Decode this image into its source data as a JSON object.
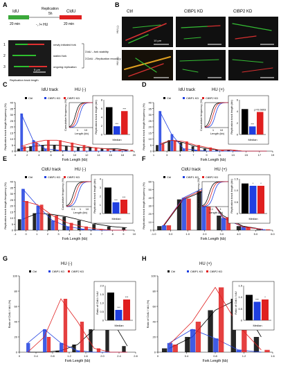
{
  "figure": {
    "panel_letters": [
      "A",
      "B",
      "C",
      "D",
      "E",
      "F",
      "G",
      "H"
    ],
    "schematic": {
      "idu_label": "IdU",
      "idu_time": "20 min",
      "replication_label": "Replication",
      "replication_time": "5h",
      "hu_label": "-, /+ HU",
      "cldu_label": "CldU",
      "cldu_time": "20 min",
      "fork_classes": [
        "newly initiated fork",
        "stalled fork",
        "ongoing replication"
      ],
      "fork_numbers": [
        "1",
        "2",
        "3"
      ],
      "sum_idu": "ΣIdU→fork stability",
      "sum_cldu": "ΣCldU→Replication recovery",
      "scale_bar": "5 μm",
      "track_caption": "Replication track length"
    },
    "micrographs": {
      "column_labels": [
        "Ctrl",
        "CtBP1 KD",
        "CtBP2 KD"
      ],
      "row_labels": [
        "HU (-)",
        "HU (+)"
      ],
      "scale_bar": "10 μm"
    }
  },
  "legend": {
    "ctrl": "Ctrl",
    "ctbp1": "CtBP1 KD",
    "ctbp2": "CtBP2 KD",
    "ctrl_color": "#000000",
    "ctbp1_color": "#1f3fe0",
    "ctbp2_color": "#e01f1f"
  },
  "chart_data": [
    {
      "panel": "C",
      "type": "bar",
      "title": "IdU track",
      "condition": "HU (-)",
      "xlabel": "Fork Length (kb)",
      "ylabel": "Replication track length frequency (%)",
      "ylim": [
        0,
        40
      ],
      "yticks": [
        "0",
        "5",
        "10",
        "15",
        "20",
        "25",
        "30",
        "35",
        "40"
      ],
      "xticks": [
        "0",
        "2",
        "4",
        "6",
        "8",
        "10",
        "12",
        "14",
        "16",
        "18",
        "20"
      ],
      "series": [
        {
          "name": "Ctrl",
          "values": [
            2,
            4,
            5,
            5,
            4,
            3,
            3,
            2,
            2,
            1
          ]
        },
        {
          "name": "CtBP1 KD",
          "values": [
            31,
            9,
            2,
            1,
            0,
            0,
            0,
            0,
            0,
            0
          ]
        },
        {
          "name": "CtBP2 KD",
          "values": [
            4,
            7,
            9,
            9,
            7,
            5,
            3,
            2,
            1,
            1
          ]
        }
      ],
      "inset_cdf": {
        "ylabel": "Cumulative frequency (%)",
        "xlabel": "Length (kb)",
        "xticks": [
          "1",
          "10"
        ]
      },
      "median": {
        "label": "Median",
        "ylabel": "Replication track length (kb)",
        "ylim": [
          0,
          8
        ],
        "yticks": [
          "0",
          "2",
          "4",
          "6",
          "8"
        ],
        "values": [
          6.3,
          1.9,
          5.4
        ],
        "marks": [
          "",
          "***",
          "***"
        ]
      }
    },
    {
      "panel": "D",
      "type": "bar",
      "title": "IdU track",
      "condition": "HU (+)",
      "xlabel": "Fork Length (kb)",
      "ylabel": "Replication track length frequency (%)",
      "ylim": [
        0,
        40
      ],
      "yticks": [
        "0",
        "5",
        "10",
        "15",
        "20",
        "25",
        "30",
        "35",
        "40"
      ],
      "xticks": [
        "1",
        "3",
        "5",
        "7",
        "9",
        "11",
        "13",
        "15",
        "17",
        "19"
      ],
      "series": [
        {
          "name": "Ctrl",
          "values": [
            5,
            9,
            7,
            4,
            2,
            1,
            1,
            0,
            0,
            0
          ]
        },
        {
          "name": "CtBP1 KD",
          "values": [
            33,
            14,
            2,
            1,
            0,
            0,
            0,
            0,
            0,
            0
          ]
        },
        {
          "name": "CtBP2 KD",
          "values": [
            6,
            9,
            8,
            5,
            3,
            1,
            1,
            0,
            0,
            0
          ]
        }
      ],
      "inset_cdf": {
        "ylabel": "Cumulative frequency (%)",
        "xlabel": "Length (kb)",
        "xticks": [
          "1",
          "10"
        ]
      },
      "median": {
        "label": "Median",
        "ylabel": "Replication track length (kb)",
        "ylim": [
          0,
          6
        ],
        "yticks": [
          "0",
          "2",
          "4",
          "6"
        ],
        "values": [
          4.4,
          1.4,
          3.9
        ],
        "marks": [
          "",
          "***",
          "p=0.0803"
        ]
      }
    },
    {
      "panel": "E",
      "type": "bar",
      "title": "CldU track",
      "condition": "HU (-)",
      "xlabel": "Fork Length (kb)",
      "ylabel": "Replication track length frequency (%)",
      "ylim": [
        0,
        40
      ],
      "yticks": [
        "0",
        "5",
        "10",
        "15",
        "20",
        "25",
        "30",
        "35",
        "40"
      ],
      "xticks": [
        "-1",
        "0",
        "1",
        "2",
        "3",
        "4",
        "5",
        "6",
        "7",
        "8",
        "9",
        "10"
      ],
      "series": [
        {
          "name": "Ctrl",
          "values": [
            9,
            14,
            13,
            11,
            8,
            5,
            3,
            2
          ]
        },
        {
          "name": "CtBP1 KD",
          "values": [
            34,
            20,
            8,
            3,
            1,
            0,
            0,
            0
          ]
        },
        {
          "name": "CtBP2 KD",
          "values": [
            24,
            21,
            12,
            6,
            3,
            1,
            0,
            0
          ]
        }
      ],
      "inset_cdf": {
        "ylabel": "Cumulative frequency (%)",
        "xlabel": "Length (kb)",
        "xticks": [
          "0.1",
          "1",
          "10"
        ]
      },
      "median": {
        "label": "Median",
        "ylabel": "Replication track length (kb)",
        "ylim": [
          0,
          4
        ],
        "yticks": [
          "0",
          "1",
          "2",
          "3",
          "4"
        ],
        "values": [
          3.0,
          1.3,
          1.6
        ],
        "marks": [
          "",
          "***",
          "***"
        ]
      }
    },
    {
      "panel": "F",
      "type": "bar",
      "title": "CldU track",
      "condition": "HU (+)",
      "xlabel": "Fork Length (kb)",
      "ylabel": "Replication track length frequency (%)",
      "ylim": [
        0,
        60
      ],
      "yticks": [
        "0",
        "10",
        "20",
        "30",
        "40",
        "50",
        "60"
      ],
      "xticks": [
        "-1.0",
        "0.0",
        "1.0",
        "2.0",
        "3.0",
        "4.0",
        "5.0",
        "6.0"
      ],
      "series": [
        {
          "name": "Ctrl",
          "values": [
            5,
            38,
            48,
            18,
            5,
            1
          ]
        },
        {
          "name": "CtBP1 KD",
          "values": [
            6,
            40,
            52,
            15,
            4,
            1
          ]
        },
        {
          "name": "CtBP2 KD",
          "values": [
            6,
            39,
            50,
            16,
            4,
            1
          ]
        }
      ],
      "inset_cdf": {
        "ylabel": "Cumulative frequency (%)",
        "xlabel": "Length (kb)",
        "xticks": [
          "0.1",
          "1"
        ]
      },
      "median": {
        "label": "Median",
        "ylabel": "Replication track length (kb)",
        "ylim": [
          0,
          1.5
        ],
        "yticks": [
          "0",
          "0.5",
          "1.0",
          "1.5"
        ],
        "values": [
          1.3,
          1.2,
          1.2
        ],
        "marks": [
          "",
          "*",
          "*"
        ]
      }
    },
    {
      "panel": "G",
      "type": "bar",
      "condition": "HU (-)",
      "xlabel": "Fork Length (kb)",
      "ylabel": "Ratio of CldU / IdU (%)",
      "ylim": [
        0,
        100
      ],
      "yticks": [
        "0",
        "20",
        "40",
        "60",
        "80",
        "100"
      ],
      "xticks": [
        "0",
        "0.4",
        "0.8",
        "1.2",
        "1.6",
        "2.0",
        "2.4",
        "2.8"
      ],
      "series": [
        {
          "name": "Ctrl",
          "values": [
            0,
            0,
            2,
            10,
            30,
            45,
            8
          ]
        },
        {
          "name": "CtBP1 KD",
          "values": [
            12,
            30,
            12,
            2,
            0,
            0,
            0
          ]
        },
        {
          "name": "CtBP2 KD",
          "values": [
            0,
            20,
            70,
            40,
            5,
            0,
            0
          ]
        }
      ],
      "median": {
        "label": "Median",
        "ylabel": "Ratio of CldU / IdU",
        "ylim": [
          0,
          2
        ],
        "yticks": [
          "0",
          "0.5",
          "1.0",
          "1.5",
          "2.0"
        ],
        "values": [
          1.6,
          0.6,
          1.2
        ],
        "marks": [
          "",
          "***",
          "***"
        ]
      }
    },
    {
      "panel": "H",
      "type": "bar",
      "condition": "HU (+)",
      "xlabel": "Fork Length (kb)",
      "ylabel": "Ratio of CldU / IdU (%)",
      "ylim": [
        0,
        100
      ],
      "yticks": [
        "0",
        "20",
        "40",
        "60",
        "80",
        "100"
      ],
      "xticks": [
        "0",
        "0.4",
        "0.8",
        "1.2",
        "1.6"
      ],
      "series": [
        {
          "name": "Ctrl",
          "values": [
            5,
            20,
            55,
            70,
            20
          ]
        },
        {
          "name": "CtBP1 KD",
          "values": [
            12,
            30,
            18,
            3,
            0
          ]
        },
        {
          "name": "CtBP2 KD",
          "values": [
            10,
            40,
            85,
            35,
            3
          ]
        }
      ],
      "median": {
        "label": "Median",
        "ylabel": "Ratio of CldU / IdU",
        "ylim": [
          0,
          1.5
        ],
        "yticks": [
          "0",
          "0.5",
          "1.0",
          "1.5"
        ],
        "values": [
          1.1,
          0.8,
          0.9
        ],
        "marks": [
          "",
          "***",
          "*"
        ]
      }
    }
  ]
}
